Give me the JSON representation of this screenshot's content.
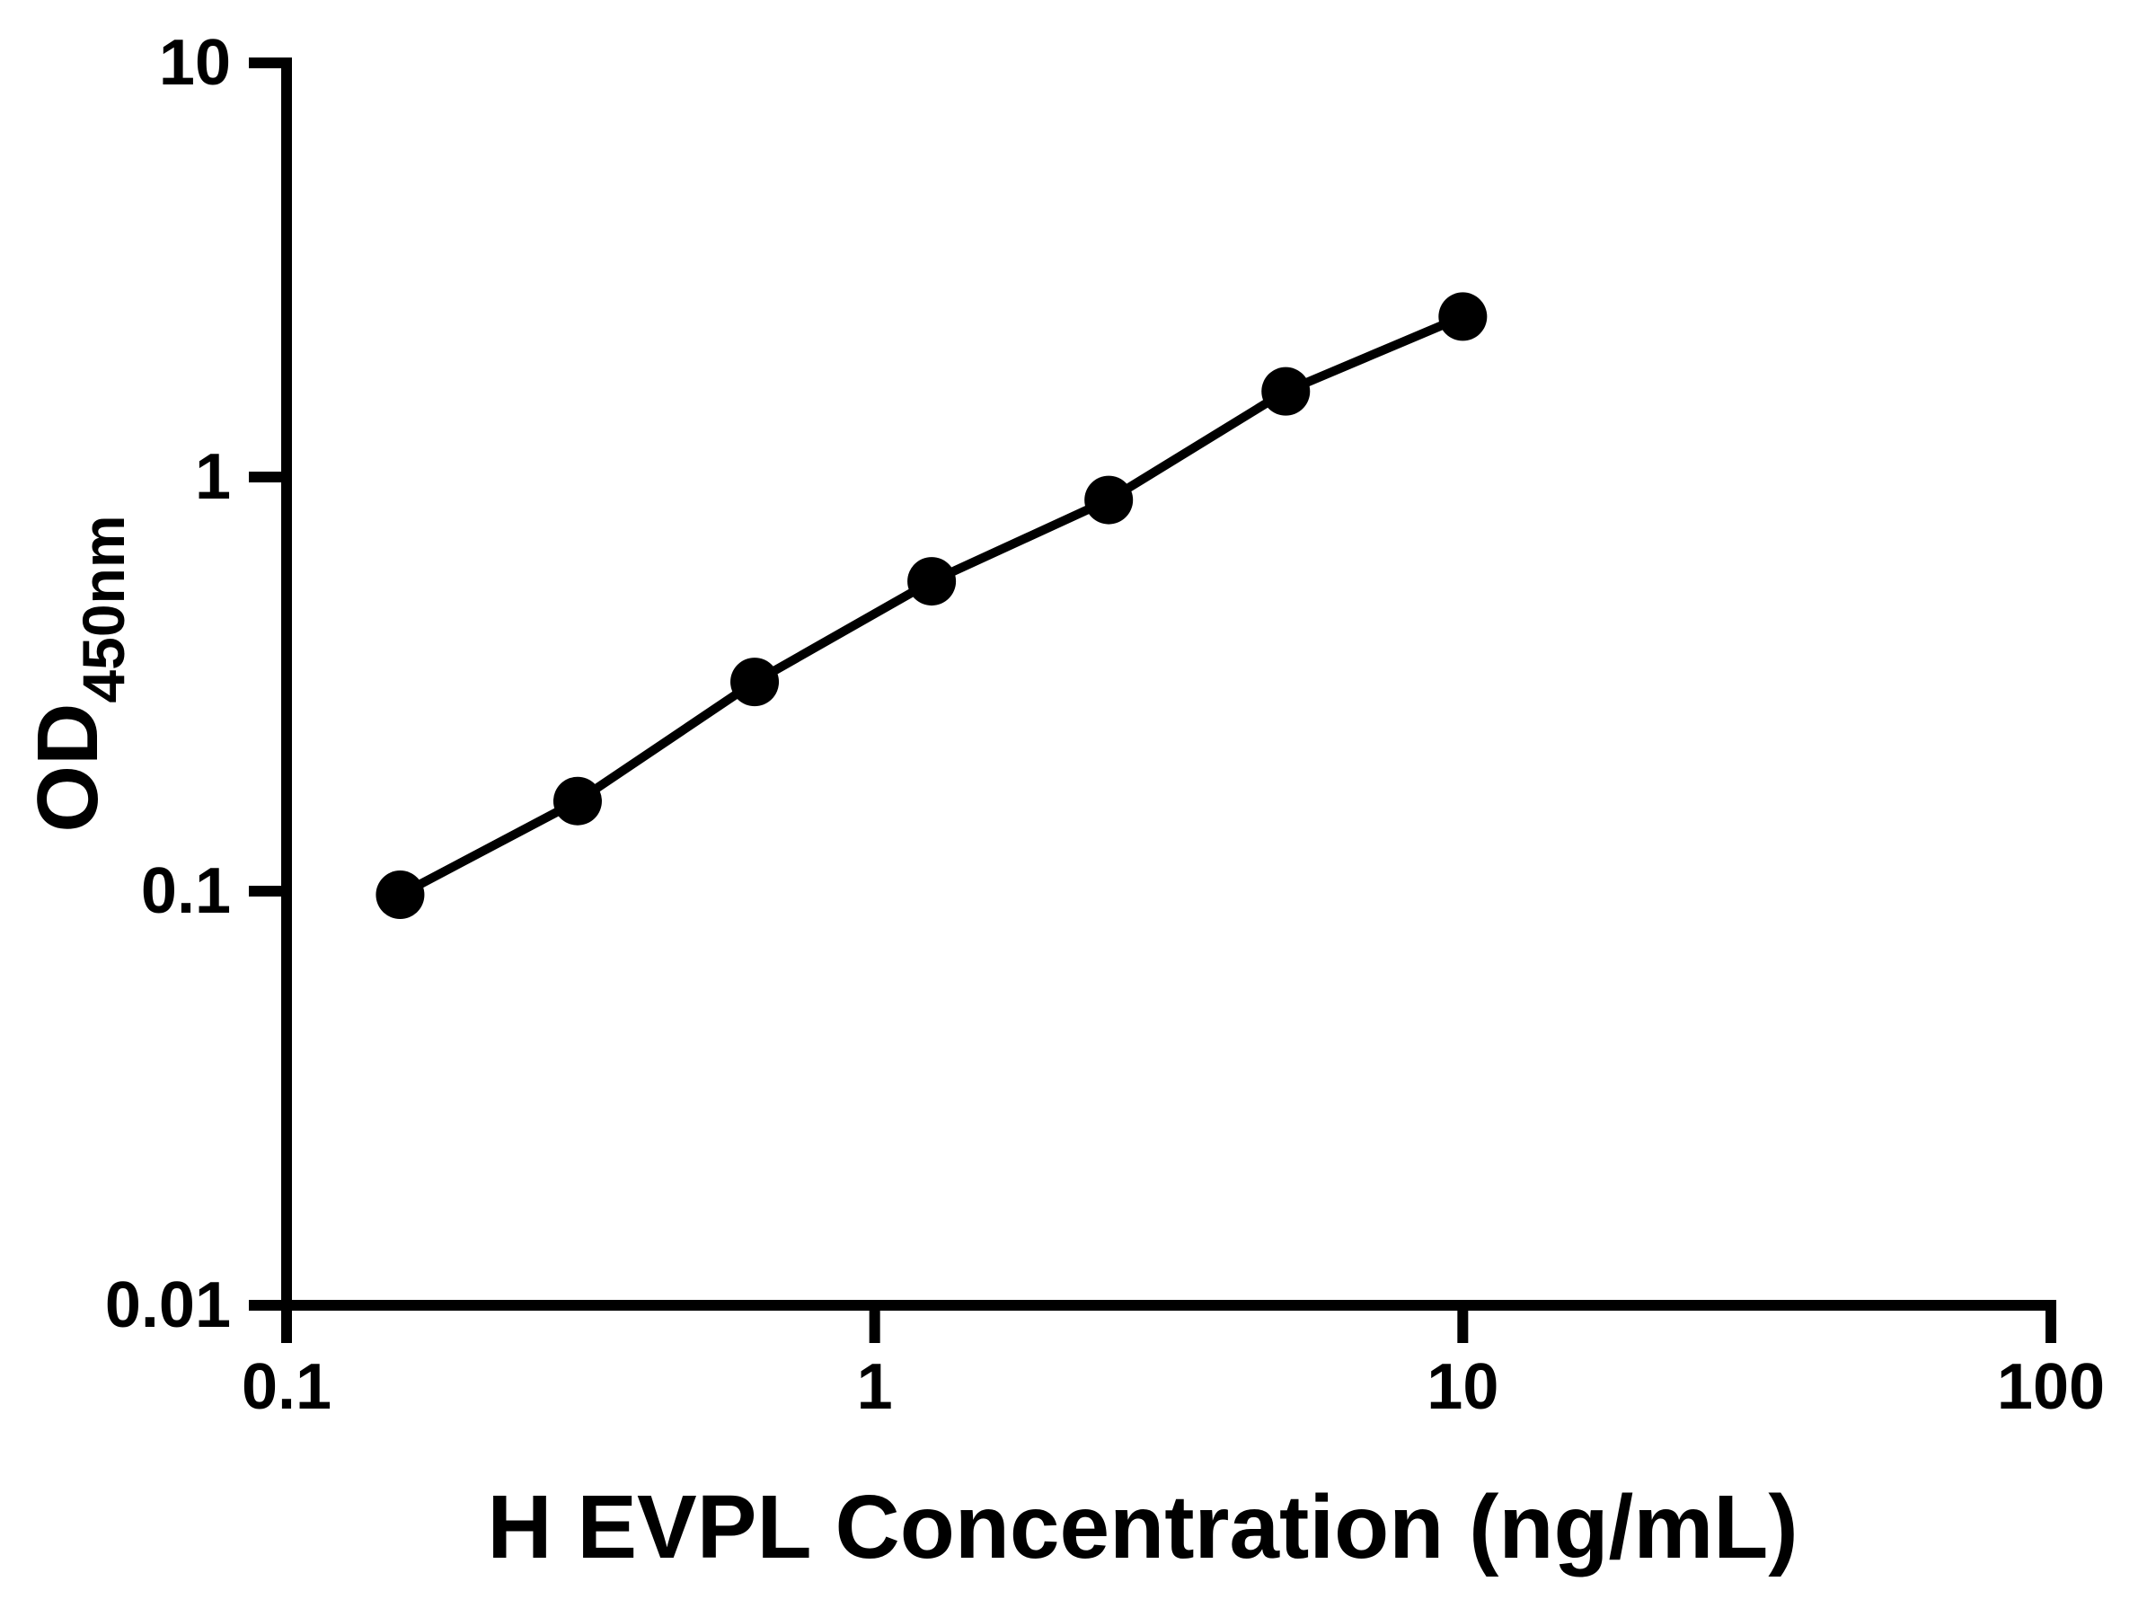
{
  "page": {
    "background_color": "#ffffff",
    "foreground_color": "#000000"
  },
  "chart_data": {
    "type": "line",
    "title": "",
    "xlabel": "H EVPL Concentration (ng/mL)",
    "ylabel": "OD",
    "ylabel_subscript": "450nm",
    "x_scale": "log",
    "y_scale": "log",
    "xlim": [
      0.1,
      100
    ],
    "ylim": [
      0.01,
      10
    ],
    "grid": false,
    "legend": false,
    "x_ticks": [
      {
        "value": 0.1,
        "label": "0.1"
      },
      {
        "value": 1,
        "label": "1"
      },
      {
        "value": 10,
        "label": "10"
      },
      {
        "value": 100,
        "label": "100"
      }
    ],
    "y_ticks": [
      {
        "value": 10,
        "label": "10"
      },
      {
        "value": 1,
        "label": "1"
      },
      {
        "value": 0.1,
        "label": "0.1"
      },
      {
        "value": 0.01,
        "label": "0.01"
      }
    ],
    "series": [
      {
        "x": [
          0.156,
          0.3125,
          0.625,
          1.25,
          2.5,
          5,
          10
        ],
        "y": [
          0.098,
          0.165,
          0.32,
          0.56,
          0.88,
          1.61,
          2.44
        ],
        "marker": "filled-circle",
        "color": "#000000"
      }
    ]
  }
}
